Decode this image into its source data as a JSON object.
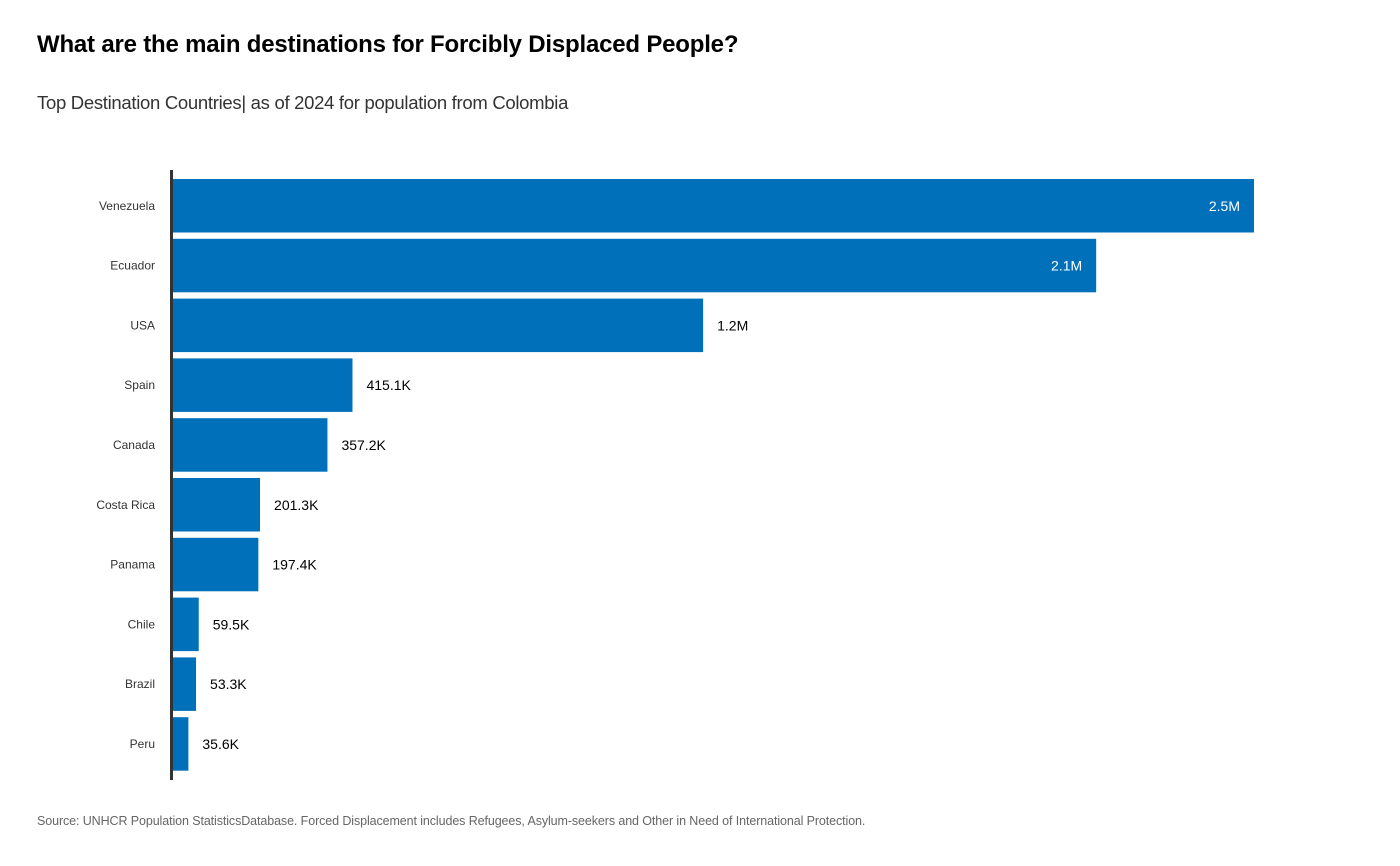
{
  "header": {
    "title": "What are the main destinations  for Forcibly Displaced People?",
    "subtitle": "Top Destination Countries| as of 2024 for population from Colombia"
  },
  "footer": {
    "source": "Source: UNHCR  Population  StatisticsDatabase. Forced Displacement  includes Refugees,  Asylum-seekers and Other in Need  of International Protection."
  },
  "colors": {
    "bar": "#0070BA",
    "axis": "#333333",
    "label_inside": "#ffffff",
    "label_outside": "#000000"
  },
  "chart_data": {
    "type": "bar",
    "orientation": "horizontal",
    "title": "What are the main destinations  for Forcibly Displaced People?",
    "subtitle": "Top Destination Countries| as of 2024 for population from Colombia",
    "xlabel": "",
    "ylabel": "",
    "grid": false,
    "legend": "none",
    "xlim": [
      0,
      2500000
    ],
    "categories": [
      "Venezuela",
      "Ecuador",
      "USA",
      "Spain",
      "Canada",
      "Costa Rica",
      "Panama",
      "Chile",
      "Brazil",
      "Peru"
    ],
    "values": [
      2500000,
      2135000,
      1226000,
      415100,
      357200,
      201300,
      197400,
      59500,
      53300,
      35600
    ],
    "data_labels": [
      "2.5M",
      "2.1M",
      "1.2M",
      "415.1K",
      "357.2K",
      "201.3K",
      "197.4K",
      "59.5K",
      "53.3K",
      "35.6K"
    ],
    "label_inside": [
      true,
      true,
      false,
      false,
      false,
      false,
      false,
      false,
      false,
      false
    ]
  }
}
